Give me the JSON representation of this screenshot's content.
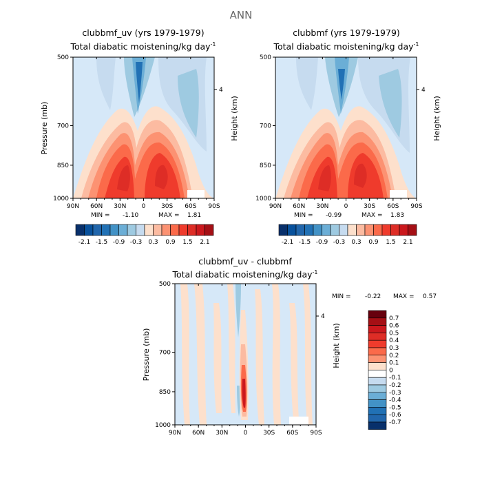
{
  "page_title": "ANN",
  "colors": {
    "neg": [
      "#08306b",
      "#08519c",
      "#2166ac",
      "#2171b5",
      "#4292c6",
      "#6baed6",
      "#9ecae1",
      "#c6dbef",
      "#deebf7"
    ],
    "zero": "#d6e8f8",
    "pos": [
      "#fde0cc",
      "#fcbba1",
      "#fc9272",
      "#fb6a4a",
      "#ef3b2c",
      "#de2d26",
      "#cb181d",
      "#a50f15",
      "#67000d"
    ]
  },
  "chart_data": [
    {
      "type": "heatmap",
      "title": "clubbmf_uv (yrs 1979-1979)",
      "subtitle": "Total diabatic moistening/kg day",
      "subtitle_sup": "-1",
      "xlabel": "",
      "ylabel": "Pressure (mb)",
      "y2label": "Height (km)",
      "x_ticks": [
        "90N",
        "60N",
        "30N",
        "0",
        "30S",
        "60S",
        "90S"
      ],
      "y_ticks": [
        "500",
        "700",
        "850",
        "1000"
      ],
      "y_tick_values": [
        500,
        700,
        850,
        1000
      ],
      "y2_ticks": [
        "4"
      ],
      "xlim": [
        90,
        -90
      ],
      "ylim": [
        1000,
        500
      ],
      "stats": {
        "min_label": "MIN =",
        "min": "-1.10",
        "max_label": "MAX =",
        "max": "1.81"
      },
      "colorbar_labels": [
        "-2.1",
        "-1.5",
        "-0.9",
        "-0.3",
        "0.3",
        "0.9",
        "1.5",
        "2.1"
      ],
      "colorbar_levels": [
        -2.1,
        -1.8,
        -1.5,
        -1.2,
        -0.9,
        -0.6,
        -0.3,
        0,
        0.3,
        0.6,
        0.9,
        1.2,
        1.5,
        1.8,
        2.1
      ]
    },
    {
      "type": "heatmap",
      "title": "clubbmf (yrs 1979-1979)",
      "subtitle": "Total diabatic moistening/kg day",
      "subtitle_sup": "-1",
      "xlabel": "",
      "ylabel": "",
      "y2label": "Height (km)",
      "x_ticks": [
        "90N",
        "60N",
        "30N",
        "0",
        "30S",
        "60S",
        "90S"
      ],
      "y_ticks": [
        "500",
        "700",
        "850",
        "1000"
      ],
      "y_tick_values": [
        500,
        700,
        850,
        1000
      ],
      "y2_ticks": [
        "4"
      ],
      "xlim": [
        90,
        -90
      ],
      "ylim": [
        1000,
        500
      ],
      "stats": {
        "min_label": "MIN =",
        "min": "-0.99",
        "max_label": "MAX =",
        "max": "1.83"
      },
      "colorbar_labels": [
        "-2.1",
        "-1.5",
        "-0.9",
        "-0.3",
        "0.3",
        "0.9",
        "1.5",
        "2.1"
      ],
      "colorbar_levels": [
        -2.1,
        -1.8,
        -1.5,
        -1.2,
        -0.9,
        -0.6,
        -0.3,
        0,
        0.3,
        0.6,
        0.9,
        1.2,
        1.5,
        1.8,
        2.1
      ]
    },
    {
      "type": "heatmap",
      "title": "clubbmf_uv - clubbmf",
      "subtitle": "Total diabatic moistening/kg day",
      "subtitle_sup": "-1",
      "xlabel": "",
      "ylabel": "Pressure (mb)",
      "y2label": "Height (km)",
      "x_ticks": [
        "90N",
        "60N",
        "30N",
        "0",
        "30S",
        "60S",
        "90S"
      ],
      "y_ticks": [
        "500",
        "700",
        "850",
        "1000"
      ],
      "y_tick_values": [
        500,
        700,
        850,
        1000
      ],
      "y2_ticks": [
        "4"
      ],
      "xlim": [
        90,
        -90
      ],
      "ylim": [
        1000,
        500
      ],
      "stats": {
        "min_label": "MIN =",
        "min": "-0.22",
        "max_label": "MAX =",
        "max": "0.57"
      },
      "colorbar_labels": [
        "0.7",
        "0.6",
        "0.5",
        "0.4",
        "0.3",
        "0.2",
        "0.1",
        "0",
        "-0.1",
        "-0.2",
        "-0.3",
        "-0.4",
        "-0.5",
        "-0.6",
        "-0.7"
      ],
      "colorbar_levels": [
        0.7,
        0.6,
        0.5,
        0.4,
        0.3,
        0.2,
        0.1,
        0,
        -0.1,
        -0.2,
        -0.3,
        -0.4,
        -0.5,
        -0.6,
        -0.7
      ]
    }
  ]
}
